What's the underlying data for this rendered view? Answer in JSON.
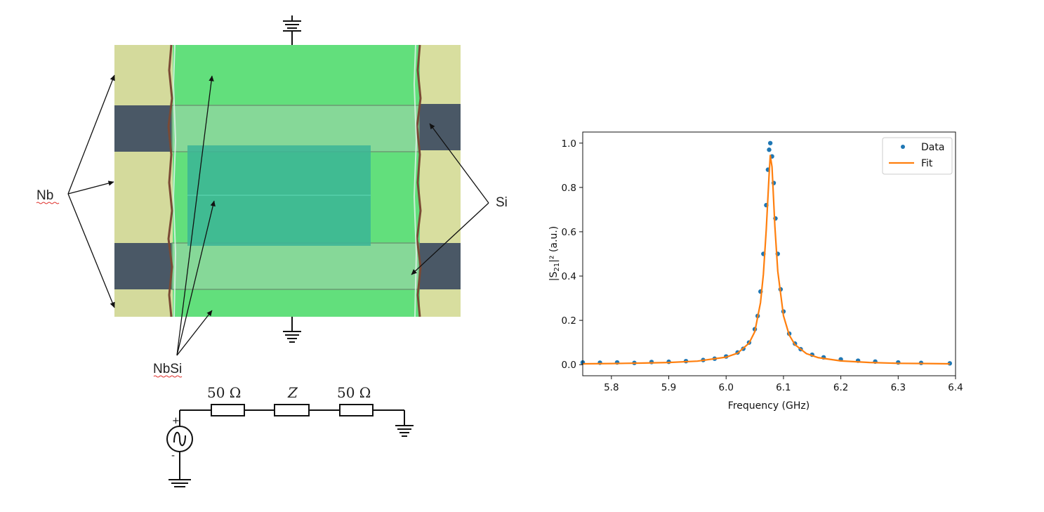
{
  "micrograph": {
    "labels": {
      "nb": "Nb",
      "si": "Si",
      "nbsi": "NbSi"
    }
  },
  "circuit": {
    "resistor_left": "50 Ω",
    "impedance": "Z",
    "resistor_right": "50 Ω",
    "source_plus": "+",
    "source_minus": "-"
  },
  "colors": {
    "data": "#1f77b4",
    "fit": "#ff7f0e",
    "nbsi_green": "#62df7c",
    "nb_yellow": "#d6dd9e",
    "si_gray": "#4a5866"
  },
  "chart_data": {
    "type": "scatter",
    "xlabel": "Frequency (GHz)",
    "ylabel": "|S21|² (a.u.)",
    "ylabel_parts": {
      "pre": "|S",
      "sub": "21",
      "post": "|² (a.u.)"
    },
    "xlim": [
      5.75,
      6.4
    ],
    "ylim": [
      -0.05,
      1.05
    ],
    "xticks": [
      5.8,
      5.9,
      6.0,
      6.1,
      6.2,
      6.3,
      6.4
    ],
    "xtick_labels": [
      "5.8",
      "5.9",
      "6.0",
      "6.1",
      "6.2",
      "6.3",
      "6.4"
    ],
    "yticks": [
      0.0,
      0.2,
      0.4,
      0.6,
      0.8,
      1.0
    ],
    "ytick_labels": [
      "0.0",
      "0.2",
      "0.4",
      "0.6",
      "0.8",
      "1.0"
    ],
    "legend_position": "top-right",
    "grid": false,
    "series": [
      {
        "name": "Data",
        "kind": "scatter",
        "x": [
          5.75,
          5.78,
          5.81,
          5.84,
          5.87,
          5.9,
          5.93,
          5.96,
          5.98,
          6.0,
          6.02,
          6.03,
          6.04,
          6.05,
          6.055,
          6.06,
          6.065,
          6.07,
          6.073,
          6.075,
          6.077,
          6.08,
          6.083,
          6.086,
          6.09,
          6.095,
          6.1,
          6.11,
          6.12,
          6.13,
          6.15,
          6.17,
          6.2,
          6.23,
          6.26,
          6.3,
          6.34,
          6.39
        ],
        "y": [
          0.01,
          0.009,
          0.01,
          0.008,
          0.012,
          0.013,
          0.016,
          0.021,
          0.027,
          0.037,
          0.055,
          0.072,
          0.1,
          0.16,
          0.22,
          0.33,
          0.5,
          0.72,
          0.88,
          0.97,
          1.0,
          0.94,
          0.82,
          0.66,
          0.5,
          0.34,
          0.24,
          0.14,
          0.095,
          0.07,
          0.045,
          0.033,
          0.024,
          0.018,
          0.014,
          0.01,
          0.008,
          0.006
        ]
      },
      {
        "name": "Fit",
        "kind": "line",
        "x": [
          5.75,
          5.8,
          5.85,
          5.9,
          5.95,
          6.0,
          6.02,
          6.04,
          6.05,
          6.06,
          6.065,
          6.07,
          6.075,
          6.077,
          6.08,
          6.085,
          6.09,
          6.1,
          6.11,
          6.12,
          6.14,
          6.16,
          6.2,
          6.25,
          6.3,
          6.35,
          6.39
        ],
        "y": [
          0.004,
          0.005,
          0.007,
          0.01,
          0.016,
          0.034,
          0.052,
          0.097,
          0.149,
          0.28,
          0.408,
          0.61,
          0.86,
          0.944,
          0.893,
          0.623,
          0.422,
          0.221,
          0.134,
          0.09,
          0.05,
          0.032,
          0.017,
          0.01,
          0.006,
          0.005,
          0.004
        ]
      }
    ]
  }
}
